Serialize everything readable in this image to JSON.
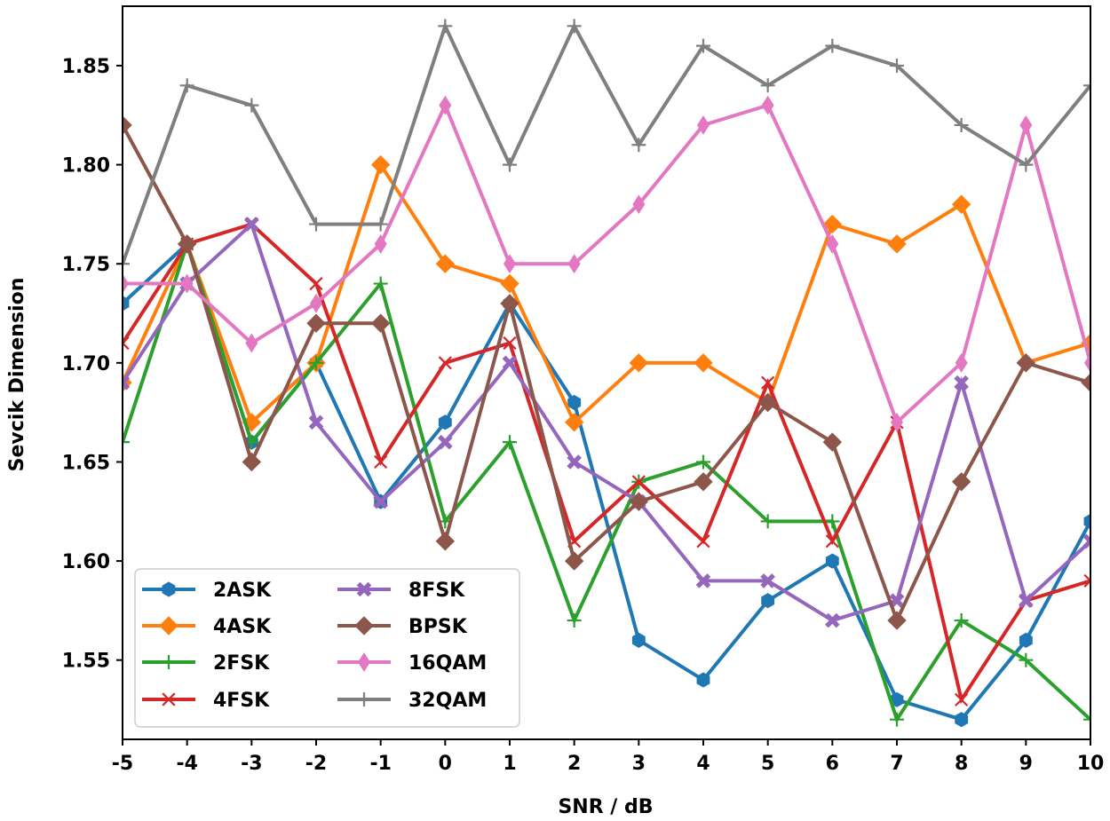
{
  "chart_data": {
    "type": "line",
    "title": "",
    "xlabel": "SNR / dB",
    "ylabel": "Sevcik Dimension",
    "xlim": [
      -5,
      10
    ],
    "ylim": [
      1.51,
      1.88
    ],
    "x": [
      -5,
      -4,
      -3,
      -2,
      -1,
      0,
      1,
      2,
      3,
      4,
      5,
      6,
      7,
      8,
      9,
      10
    ],
    "x_ticks": [
      -5,
      -4,
      -3,
      -2,
      -1,
      0,
      1,
      2,
      3,
      4,
      5,
      6,
      7,
      8,
      9,
      10
    ],
    "x_tick_labels": [
      "-5",
      "-4",
      "-3",
      "-2",
      "-1",
      "0",
      "1",
      "2",
      "3",
      "4",
      "5",
      "6",
      "7",
      "8",
      "9",
      "10"
    ],
    "y_ticks": [
      1.55,
      1.6,
      1.65,
      1.7,
      1.75,
      1.8,
      1.85
    ],
    "y_tick_labels": [
      "1.55",
      "1.60",
      "1.65",
      "1.70",
      "1.75",
      "1.80",
      "1.85"
    ],
    "grid": false,
    "legend_position": "bottom-left",
    "series": [
      {
        "name": "2ASK",
        "color": "#1f77b4",
        "marker": "hexagon",
        "values": [
          1.73,
          1.76,
          1.66,
          1.7,
          1.63,
          1.67,
          1.73,
          1.68,
          1.56,
          1.54,
          1.58,
          1.6,
          1.53,
          1.52,
          1.56,
          1.62
        ]
      },
      {
        "name": "4ASK",
        "color": "#ff7f0e",
        "marker": "diamond",
        "values": [
          1.69,
          1.76,
          1.67,
          1.7,
          1.8,
          1.75,
          1.74,
          1.67,
          1.7,
          1.7,
          1.68,
          1.77,
          1.76,
          1.78,
          1.7,
          1.71
        ]
      },
      {
        "name": "2FSK",
        "color": "#2ca02c",
        "marker": "plus",
        "values": [
          1.66,
          1.76,
          1.66,
          1.7,
          1.74,
          1.62,
          1.66,
          1.57,
          1.64,
          1.65,
          1.62,
          1.62,
          1.52,
          1.57,
          1.55,
          1.52
        ]
      },
      {
        "name": "4FSK",
        "color": "#d62728",
        "marker": "x",
        "values": [
          1.71,
          1.76,
          1.77,
          1.74,
          1.65,
          1.7,
          1.71,
          1.61,
          1.64,
          1.61,
          1.69,
          1.61,
          1.67,
          1.53,
          1.58,
          1.59
        ]
      },
      {
        "name": "8FSK",
        "color": "#9467bd",
        "marker": "xfilled",
        "values": [
          1.69,
          1.74,
          1.77,
          1.67,
          1.63,
          1.66,
          1.7,
          1.65,
          1.63,
          1.59,
          1.59,
          1.57,
          1.58,
          1.69,
          1.58,
          1.61
        ]
      },
      {
        "name": "BPSK",
        "color": "#8c564b",
        "marker": "diamond",
        "values": [
          1.82,
          1.76,
          1.65,
          1.72,
          1.72,
          1.61,
          1.73,
          1.6,
          1.63,
          1.64,
          1.68,
          1.66,
          1.57,
          1.64,
          1.7,
          1.69
        ]
      },
      {
        "name": "16QAM",
        "color": "#e377c2",
        "marker": "thin_diamond",
        "values": [
          1.74,
          1.74,
          1.71,
          1.73,
          1.76,
          1.83,
          1.75,
          1.75,
          1.78,
          1.82,
          1.83,
          1.76,
          1.67,
          1.7,
          1.82,
          1.7
        ]
      },
      {
        "name": "32QAM",
        "color": "#7f7f7f",
        "marker": "plus",
        "values": [
          1.75,
          1.84,
          1.83,
          1.77,
          1.77,
          1.87,
          1.8,
          1.87,
          1.81,
          1.86,
          1.84,
          1.86,
          1.85,
          1.82,
          1.8,
          1.84
        ]
      }
    ]
  }
}
